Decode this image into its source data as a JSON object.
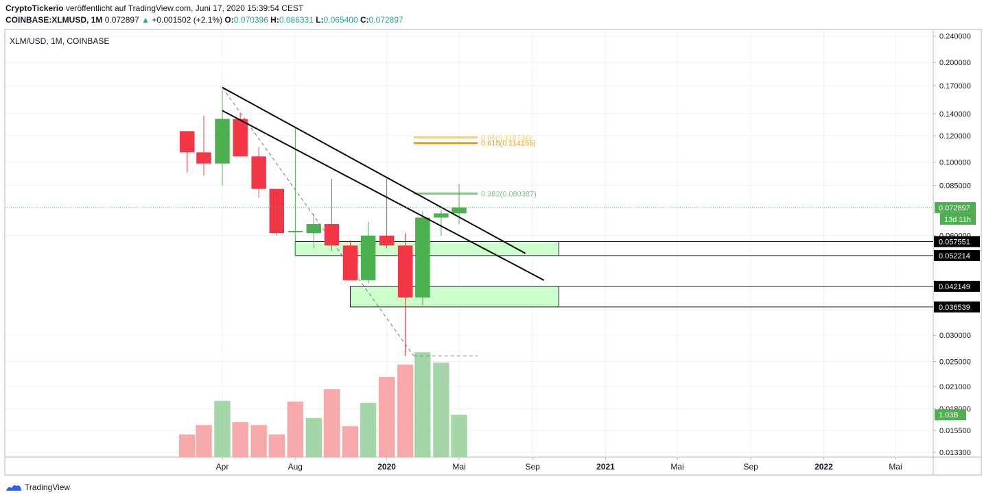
{
  "header": {
    "author": "CryptoTickerio",
    "published": "veröffentlicht auf TradingView.com, Juni 17, 2020 15:39:54 CEST",
    "symbol": "COINBASE:XLMUSD, 1M",
    "last": "0.072897",
    "change": "+0.001502 (+2.1%)",
    "o_label": "O:",
    "o": "0.070396",
    "h_label": "H:",
    "h": "0.086331",
    "l_label": "L:",
    "l": "0.065400",
    "c_label": "C:",
    "c": "0.072897"
  },
  "legend": "XLM/USD, 1M, COINBASE",
  "footer": {
    "brand": "TradingView"
  },
  "colors": {
    "up": "#4caf50",
    "down": "#f23645",
    "vol_up": "#a5d6a7",
    "vol_down": "#f7a8a8",
    "zone": "#ccffcc",
    "fib_a": "#ffd54f",
    "fib_b": "#ff9800",
    "fib_c": "#81c784"
  },
  "chart_data": {
    "type": "candlestick",
    "y_scale": "log",
    "price_ticks": [
      "0.240000",
      "0.200000",
      "0.170000",
      "0.140000",
      "0.120000",
      "0.100000",
      "0.085000",
      "0.060000",
      "0.030000",
      "0.025000",
      "0.021000",
      "0.018000",
      "0.015500",
      "0.013300"
    ],
    "x_ticks": [
      {
        "label": "Apr",
        "date": "2019-04-01"
      },
      {
        "label": "Aug",
        "date": "2019-08-01"
      },
      {
        "label": "2020",
        "date": "2020-01-01",
        "bold": true
      },
      {
        "label": "Mai",
        "date": "2020-05-01"
      },
      {
        "label": "Sep",
        "date": "2020-09-01"
      },
      {
        "label": "2021",
        "date": "2021-01-01",
        "bold": true
      },
      {
        "label": "Mai",
        "date": "2021-05-01"
      },
      {
        "label": "Sep",
        "date": "2021-09-01"
      },
      {
        "label": "2022",
        "date": "2022-01-01",
        "bold": true
      },
      {
        "label": "Mai",
        "date": "2022-05-01"
      }
    ],
    "candles": [
      {
        "date": "2019-02-01",
        "o": 0.124,
        "h": 0.124,
        "l": 0.093,
        "c": 0.107
      },
      {
        "date": "2019-03-01",
        "o": 0.107,
        "h": 0.138,
        "l": 0.091,
        "c": 0.099
      },
      {
        "date": "2019-04-01",
        "o": 0.099,
        "h": 0.165,
        "l": 0.085,
        "c": 0.135
      },
      {
        "date": "2019-05-01",
        "o": 0.135,
        "h": 0.141,
        "l": 0.104,
        "c": 0.104
      },
      {
        "date": "2019-06-01",
        "o": 0.104,
        "h": 0.111,
        "l": 0.078,
        "c": 0.083
      },
      {
        "date": "2019-07-01",
        "o": 0.083,
        "h": 0.083,
        "l": 0.06,
        "c": 0.061
      },
      {
        "date": "2019-08-01",
        "o": 0.062,
        "h": 0.127,
        "l": 0.052,
        "c": 0.062
      },
      {
        "date": "2019-09-01",
        "o": 0.061,
        "h": 0.07,
        "l": 0.055,
        "c": 0.065
      },
      {
        "date": "2019-10-01",
        "o": 0.065,
        "h": 0.089,
        "l": 0.054,
        "c": 0.056
      },
      {
        "date": "2019-11-01",
        "o": 0.056,
        "h": 0.058,
        "l": 0.044,
        "c": 0.044
      },
      {
        "date": "2019-12-01",
        "o": 0.044,
        "h": 0.066,
        "l": 0.043,
        "c": 0.06
      },
      {
        "date": "2020-01-01",
        "o": 0.06,
        "h": 0.089,
        "l": 0.055,
        "c": 0.056
      },
      {
        "date": "2020-02-01",
        "o": 0.056,
        "h": 0.061,
        "l": 0.026,
        "c": 0.039
      },
      {
        "date": "2020-03-01",
        "o": 0.039,
        "h": 0.071,
        "l": 0.037,
        "c": 0.068
      },
      {
        "date": "2020-04-01",
        "o": 0.068,
        "h": 0.072,
        "l": 0.06,
        "c": 0.07
      },
      {
        "date": "2020-05-01",
        "o": 0.07,
        "h": 0.086,
        "l": 0.065,
        "c": 0.073
      }
    ],
    "volume": [
      {
        "date": "2019-02-01",
        "v": 0.55,
        "dir": "down"
      },
      {
        "date": "2019-03-01",
        "v": 0.78,
        "dir": "down"
      },
      {
        "date": "2019-04-01",
        "v": 1.37,
        "dir": "up"
      },
      {
        "date": "2019-05-01",
        "v": 0.85,
        "dir": "down"
      },
      {
        "date": "2019-06-01",
        "v": 0.78,
        "dir": "down"
      },
      {
        "date": "2019-07-01",
        "v": 0.55,
        "dir": "down"
      },
      {
        "date": "2019-08-01",
        "v": 1.35,
        "dir": "down"
      },
      {
        "date": "2019-09-01",
        "v": 0.95,
        "dir": "up"
      },
      {
        "date": "2019-10-01",
        "v": 1.65,
        "dir": "down"
      },
      {
        "date": "2019-11-01",
        "v": 0.75,
        "dir": "down"
      },
      {
        "date": "2019-12-01",
        "v": 1.32,
        "dir": "up"
      },
      {
        "date": "2020-01-01",
        "v": 1.95,
        "dir": "down"
      },
      {
        "date": "2020-02-01",
        "v": 2.25,
        "dir": "down"
      },
      {
        "date": "2020-03-01",
        "v": 2.55,
        "dir": "up"
      },
      {
        "date": "2020-04-01",
        "v": 2.3,
        "dir": "up"
      },
      {
        "date": "2020-05-01",
        "v": 1.03,
        "dir": "up"
      }
    ],
    "volume_label": "1.03B",
    "last_price_label": "0.072897",
    "countdown_label": "13d 11h",
    "zones": [
      {
        "top": 0.057551,
        "bottom": 0.052214,
        "start": "2019-08-01",
        "end": "2020-10-15"
      },
      {
        "top": 0.042149,
        "bottom": 0.036539,
        "start": "2019-11-01",
        "end": "2020-10-15"
      }
    ],
    "zone_labels": [
      "0.057551",
      "0.052214",
      "0.042149",
      "0.036539"
    ],
    "trend_lines": [
      {
        "from": {
          "date": "2019-04-01",
          "price": 0.168
        },
        "to": {
          "date": "2020-08-20",
          "price": 0.053
        }
      },
      {
        "from": {
          "date": "2019-04-01",
          "price": 0.143
        },
        "to": {
          "date": "2020-09-20",
          "price": 0.044
        }
      }
    ],
    "fib_helper_lines": [
      {
        "from": {
          "date": "2019-04-01",
          "price": 0.168
        },
        "to": {
          "date": "2020-02-15",
          "price": 0.026
        }
      },
      {
        "from": {
          "date": "2020-02-15",
          "price": 0.026
        },
        "to": {
          "date": "2020-06-01",
          "price": 0.026
        }
      }
    ],
    "fib_levels": [
      {
        "ratio": "0.65",
        "price": 0.118734,
        "label": "0.65(0.118734)",
        "color": "#ffd54f"
      },
      {
        "ratio": "0.618",
        "price": 0.114155,
        "label": "0.618(0.114155)",
        "color": "#ff9800"
      },
      {
        "ratio": "0.382",
        "price": 0.080387,
        "label": "0.382(0.080387)",
        "color": "#81c784"
      }
    ]
  }
}
